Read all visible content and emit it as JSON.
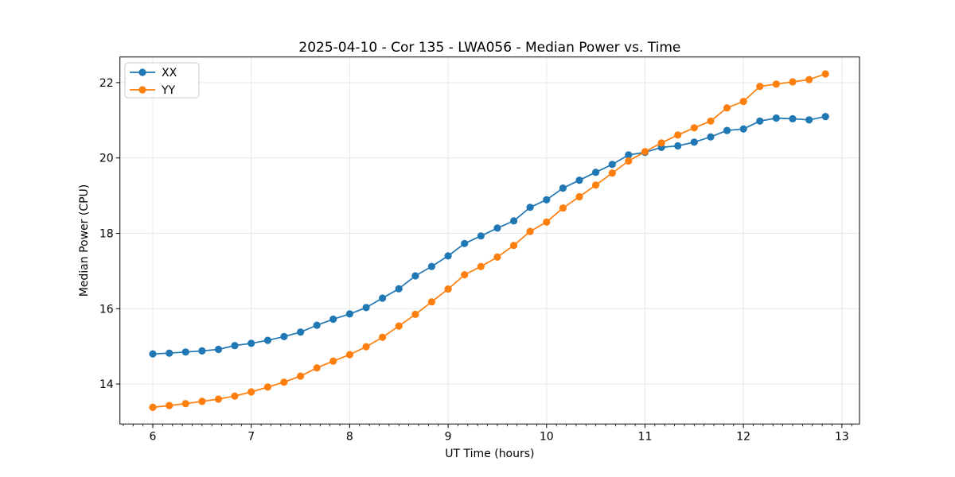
{
  "chart_data": {
    "type": "line",
    "title": "2025-04-10 - Cor 135 - LWA056 - Median Power vs. Time",
    "xlabel": "UT Time (hours)",
    "ylabel": "Median Power (CPU)",
    "xlim": [
      5.666,
      13.179
    ],
    "ylim": [
      12.94,
      22.68
    ],
    "xticks": [
      6,
      7,
      8,
      9,
      10,
      11,
      12,
      13
    ],
    "yticks": [
      14,
      16,
      18,
      20,
      22
    ],
    "x_minor_tick_step": 0.1,
    "grid": true,
    "legend_position": "upper left",
    "marker": "circle",
    "x": [
      6.0,
      6.167,
      6.333,
      6.5,
      6.667,
      6.833,
      7.0,
      7.167,
      7.333,
      7.5,
      7.667,
      7.833,
      8.0,
      8.167,
      8.333,
      8.5,
      8.667,
      8.833,
      9.0,
      9.167,
      9.333,
      9.5,
      9.667,
      9.833,
      10.0,
      10.167,
      10.333,
      10.5,
      10.667,
      10.833,
      11.0,
      11.167,
      11.333,
      11.5,
      11.667,
      11.833,
      12.0,
      12.167,
      12.333,
      12.5,
      12.667,
      12.833
    ],
    "series": [
      {
        "name": "XX",
        "color": "#1f77b4",
        "values": [
          14.8,
          14.82,
          14.85,
          14.88,
          14.92,
          15.02,
          15.08,
          15.16,
          15.26,
          15.38,
          15.56,
          15.72,
          15.86,
          16.03,
          16.28,
          16.53,
          16.87,
          17.12,
          17.4,
          17.73,
          17.93,
          18.14,
          18.33,
          18.69,
          18.89,
          19.2,
          19.41,
          19.62,
          19.83,
          20.08,
          20.15,
          20.28,
          20.32,
          20.42,
          20.56,
          20.73,
          20.77,
          20.98,
          21.06,
          21.04,
          21.01,
          21.1
        ]
      },
      {
        "name": "YY",
        "color": "#ff7f0e",
        "values": [
          13.38,
          13.43,
          13.48,
          13.54,
          13.6,
          13.68,
          13.79,
          13.92,
          14.05,
          14.21,
          14.43,
          14.61,
          14.78,
          14.99,
          15.24,
          15.54,
          15.85,
          16.18,
          16.52,
          16.9,
          17.12,
          17.37,
          17.68,
          18.05,
          18.3,
          18.67,
          18.97,
          19.28,
          19.6,
          19.92,
          20.17,
          20.4,
          20.61,
          20.8,
          20.98,
          21.33,
          21.5,
          21.9,
          21.96,
          22.02,
          22.08,
          22.23
        ]
      }
    ],
    "colors": {
      "grid": "#e7e7e7",
      "spine": "#000000",
      "text": "#000000",
      "background": "#ffffff",
      "legend_border": "#cccccc"
    }
  }
}
